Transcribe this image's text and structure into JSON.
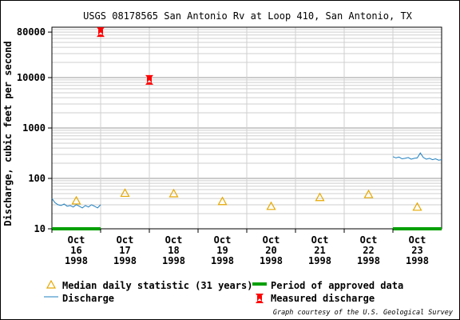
{
  "chart_data": {
    "type": "line",
    "title": "USGS 08178565 San Antonio Rv at Loop 410, San Antonio, TX",
    "ylabel": "Discharge, cubic feet per second",
    "xlabel": "",
    "y_scale": "log",
    "ylim": [
      10,
      100000
    ],
    "y_ticks": [
      {
        "value": 10,
        "label": "10"
      },
      {
        "value": 100,
        "label": "100"
      },
      {
        "value": 1000,
        "label": "1000"
      },
      {
        "value": 10000,
        "label": "10000"
      },
      {
        "value": 80000,
        "label": "80000"
      }
    ],
    "xlim": [
      "1998-10-16",
      "1998-10-24"
    ],
    "x_ticks": [
      {
        "date": "1998-10-16",
        "label": [
          "Oct",
          "16",
          "1998"
        ]
      },
      {
        "date": "1998-10-17",
        "label": [
          "Oct",
          "17",
          "1998"
        ]
      },
      {
        "date": "1998-10-18",
        "label": [
          "Oct",
          "18",
          "1998"
        ]
      },
      {
        "date": "1998-10-19",
        "label": [
          "Oct",
          "19",
          "1998"
        ]
      },
      {
        "date": "1998-10-20",
        "label": [
          "Oct",
          "20",
          "1998"
        ]
      },
      {
        "date": "1998-10-21",
        "label": [
          "Oct",
          "21",
          "1998"
        ]
      },
      {
        "date": "1998-10-22",
        "label": [
          "Oct",
          "22",
          "1998"
        ]
      },
      {
        "date": "1998-10-23",
        "label": [
          "Oct",
          "23",
          "1998"
        ]
      }
    ],
    "grid": true,
    "series": [
      {
        "name": "Discharge",
        "kind": "line",
        "color": "#1f7fbf",
        "points": [
          [
            "1998-10-16T00:00",
            40
          ],
          [
            "1998-10-16T01:30",
            33
          ],
          [
            "1998-10-16T03:00",
            30
          ],
          [
            "1998-10-16T04:30",
            29
          ],
          [
            "1998-10-16T06:00",
            31
          ],
          [
            "1998-10-16T07:30",
            28
          ],
          [
            "1998-10-16T09:00",
            29
          ],
          [
            "1998-10-16T10:30",
            27
          ],
          [
            "1998-10-16T12:00",
            30
          ],
          [
            "1998-10-16T13:30",
            28
          ],
          [
            "1998-10-16T15:00",
            26
          ],
          [
            "1998-10-16T16:30",
            29
          ],
          [
            "1998-10-16T18:00",
            27
          ],
          [
            "1998-10-16T19:30",
            30
          ],
          [
            "1998-10-16T21:00",
            28
          ],
          [
            "1998-10-16T22:30",
            26
          ],
          [
            "1998-10-17T00:00",
            30
          ]
        ],
        "points_b": [
          [
            "1998-10-23T00:00",
            270
          ],
          [
            "1998-10-23T01:30",
            255
          ],
          [
            "1998-10-23T03:00",
            265
          ],
          [
            "1998-10-23T04:30",
            245
          ],
          [
            "1998-10-23T06:00",
            250
          ],
          [
            "1998-10-23T07:30",
            260
          ],
          [
            "1998-10-23T09:00",
            240
          ],
          [
            "1998-10-23T10:30",
            250
          ],
          [
            "1998-10-23T12:00",
            255
          ],
          [
            "1998-10-23T13:30",
            320
          ],
          [
            "1998-10-23T15:00",
            260
          ],
          [
            "1998-10-23T16:30",
            240
          ],
          [
            "1998-10-23T18:00",
            250
          ],
          [
            "1998-10-23T19:30",
            235
          ],
          [
            "1998-10-23T21:00",
            245
          ],
          [
            "1998-10-23T22:30",
            230
          ],
          [
            "1998-10-24T00:00",
            235
          ]
        ]
      },
      {
        "name": "Median daily statistic (31 years)",
        "kind": "triangle",
        "color": "#e6a800",
        "points": [
          [
            "1998-10-16T12:00",
            36
          ],
          [
            "1998-10-17T12:00",
            51
          ],
          [
            "1998-10-18T12:00",
            50
          ],
          [
            "1998-10-19T12:00",
            35
          ],
          [
            "1998-10-20T12:00",
            28
          ],
          [
            "1998-10-21T12:00",
            42
          ],
          [
            "1998-10-22T12:00",
            48
          ],
          [
            "1998-10-23T12:00",
            27
          ]
        ]
      },
      {
        "name": "Measured discharge",
        "kind": "marker",
        "color": "#ff0000",
        "points": [
          [
            "1998-10-17T00:00",
            80000
          ],
          [
            "1998-10-18T00:00",
            9000
          ]
        ]
      },
      {
        "name": "Period of approved data",
        "kind": "bar",
        "color": "#00a000",
        "ranges": [
          [
            "1998-10-16T00:00",
            "1998-10-17T00:00"
          ],
          [
            "1998-10-23T00:00",
            "1998-10-24T00:00"
          ]
        ]
      }
    ],
    "legend_position": "bottom",
    "credit": "Graph courtesy of the U.S. Geological Survey"
  }
}
